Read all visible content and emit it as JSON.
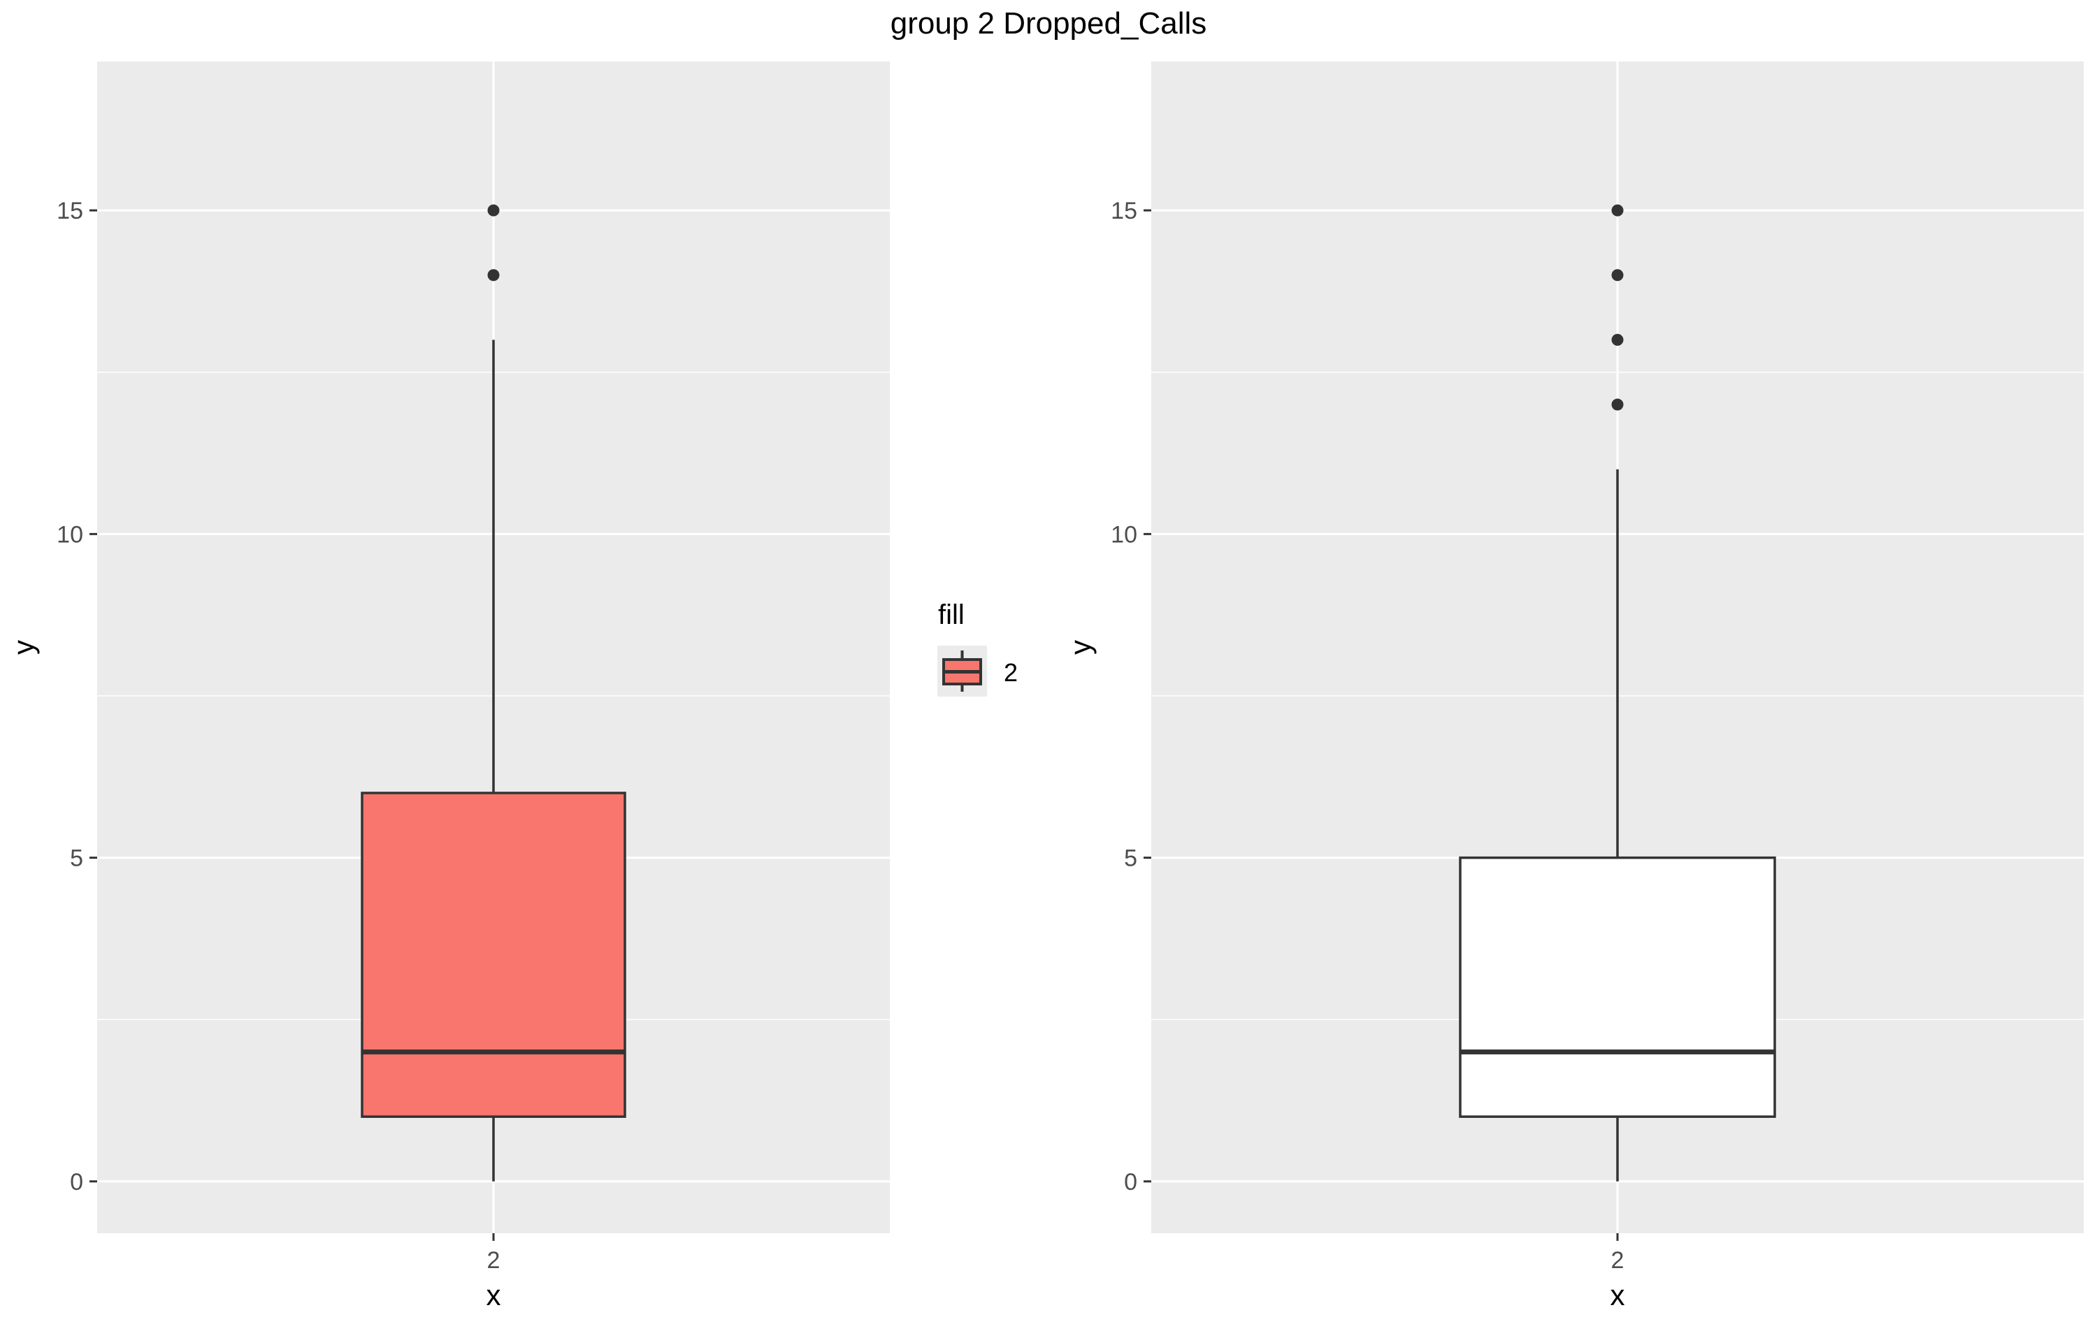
{
  "title": "group 2 Dropped_Calls",
  "colors": {
    "panel_bg": "#EBEBEB",
    "grid": "#FFFFFF",
    "tick_text": "#4D4D4D",
    "tick_mark": "#333333",
    "box_stroke": "#333333",
    "outlier": "#333333"
  },
  "legend": {
    "title": "fill",
    "items": [
      {
        "label": "2",
        "color": "#F8766D"
      }
    ]
  },
  "chart_data": [
    {
      "type": "box",
      "xlabel": "x",
      "ylabel": "y",
      "categories": [
        "2"
      ],
      "ylim": [
        -0.8,
        17.3
      ],
      "y_ticks": [
        0,
        5,
        10,
        15
      ],
      "grid": true,
      "box_fill": "#F8766D",
      "boxes": [
        {
          "category": "2",
          "lower_whisker": 0,
          "q1": 1,
          "median": 2,
          "q3": 6,
          "upper_whisker": 13,
          "outliers": [
            14,
            15
          ]
        }
      ]
    },
    {
      "type": "box",
      "xlabel": "x",
      "ylabel": "y",
      "categories": [
        "2"
      ],
      "ylim": [
        -0.8,
        17.3
      ],
      "y_ticks": [
        0,
        5,
        10,
        15
      ],
      "grid": true,
      "box_fill": "#FFFFFF",
      "boxes": [
        {
          "category": "2",
          "lower_whisker": 0,
          "q1": 1,
          "median": 2,
          "q3": 5,
          "upper_whisker": 11,
          "outliers": [
            12,
            13,
            14,
            15
          ]
        }
      ]
    }
  ]
}
